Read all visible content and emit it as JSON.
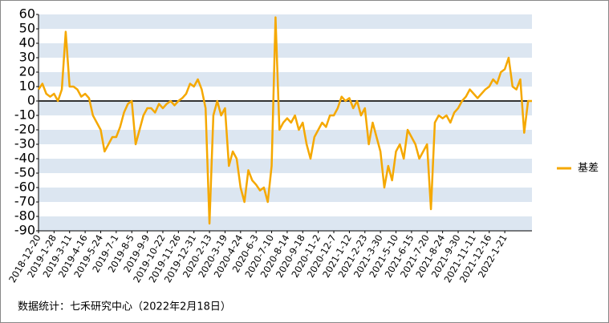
{
  "chart_data": {
    "type": "line",
    "categories": [
      "2018-12-20",
      null,
      null,
      null,
      "2019-1-28",
      null,
      null,
      null,
      "2019-3-11",
      null,
      null,
      null,
      "2019-4-16",
      null,
      null,
      null,
      "2019-5-24",
      null,
      null,
      null,
      "2019-7-1",
      null,
      null,
      null,
      "2019-8-5",
      null,
      null,
      null,
      "2019-9-9",
      null,
      null,
      null,
      "2019-10-22",
      null,
      null,
      null,
      "2019-11-26",
      null,
      null,
      null,
      "2019-12-31",
      null,
      null,
      null,
      "2020-2-13",
      null,
      null,
      null,
      "2020-3-19",
      null,
      null,
      null,
      "2020-4-24",
      null,
      null,
      null,
      "2020-6-3",
      null,
      null,
      null,
      "2020-7-10",
      null,
      null,
      null,
      "2020-8-14",
      null,
      null,
      null,
      "2020-9-18",
      null,
      null,
      null,
      "2020-11-2",
      null,
      null,
      null,
      "2020-12-7",
      null,
      null,
      null,
      "2021-1-12",
      null,
      null,
      null,
      "2021-2-23",
      null,
      null,
      null,
      "2021-3-30",
      null,
      null,
      null,
      "2021-5-10",
      null,
      null,
      null,
      "2021-6-15",
      null,
      null,
      null,
      "2021-7-20",
      null,
      null,
      null,
      "2021-8-24",
      null,
      null,
      null,
      "2021-9-30",
      null,
      null,
      null,
      "2021-11-11",
      null,
      null,
      null,
      "2021-12-16",
      null,
      null,
      null,
      "2022-1-21",
      null,
      null,
      null,
      null,
      null,
      null,
      null
    ],
    "series": [
      {
        "name": "基差",
        "color": "#f5a800",
        "values": [
          8,
          12,
          5,
          3,
          5,
          0,
          8,
          48,
          10,
          10,
          8,
          3,
          5,
          2,
          -10,
          -15,
          -20,
          -35,
          -30,
          -25,
          -25,
          -18,
          -8,
          -2,
          0,
          -30,
          -20,
          -10,
          -5,
          -5,
          -8,
          -2,
          -5,
          -2,
          0,
          -3,
          0,
          2,
          5,
          12,
          10,
          15,
          8,
          -5,
          -85,
          -10,
          0,
          -10,
          -5,
          -45,
          -35,
          -40,
          -60,
          -70,
          -48,
          -55,
          -58,
          -62,
          -60,
          -70,
          -45,
          58,
          -20,
          -15,
          -12,
          -15,
          -10,
          -20,
          -15,
          -30,
          -40,
          -25,
          -20,
          -15,
          -18,
          -10,
          -10,
          -5,
          3,
          0,
          2,
          -5,
          0,
          -10,
          -5,
          -30,
          -15,
          -25,
          -35,
          -60,
          -45,
          -55,
          -35,
          -30,
          -40,
          -20,
          -25,
          -30,
          -40,
          -35,
          -30,
          -75,
          -15,
          -10,
          -12,
          -10,
          -15,
          -8,
          -5,
          0,
          3,
          8,
          5,
          2,
          5,
          8,
          10,
          15,
          12,
          20,
          22,
          30,
          10,
          8,
          15,
          -22,
          0,
          0
        ]
      }
    ],
    "ylim": [
      -90,
      60
    ],
    "yticks": [
      60,
      50,
      40,
      30,
      20,
      10,
      0,
      -10,
      -20,
      -30,
      -40,
      -50,
      -60,
      -70,
      -80,
      -90
    ],
    "grid": "bands",
    "legend": "right",
    "source": "数据统计：七禾研究中心（2022年2月18日）"
  }
}
